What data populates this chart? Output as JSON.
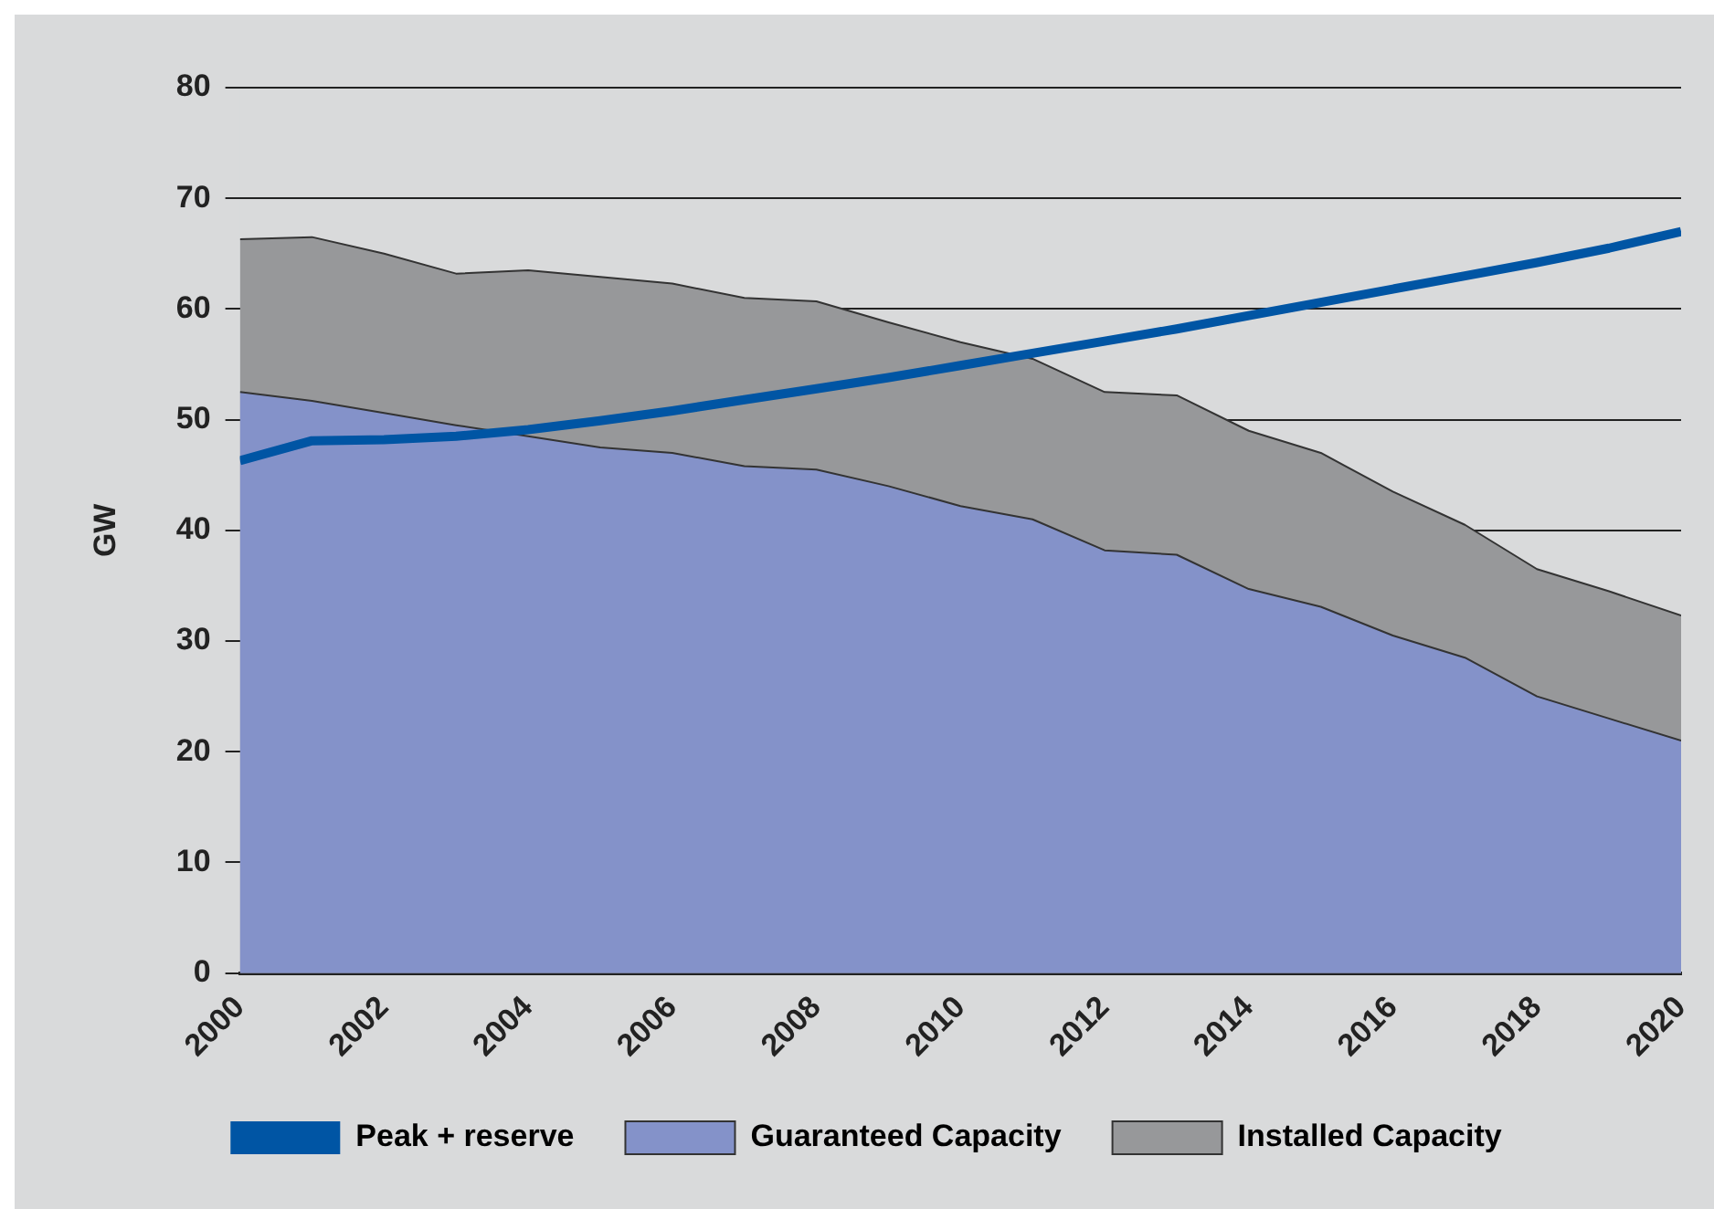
{
  "chart_data": {
    "type": "area",
    "ylabel": "GW",
    "x": [
      2000,
      2001,
      2002,
      2003,
      2004,
      2005,
      2006,
      2007,
      2008,
      2009,
      2010,
      2011,
      2012,
      2013,
      2014,
      2015,
      2016,
      2017,
      2018,
      2019,
      2020
    ],
    "xlim": [
      2000,
      2020
    ],
    "xticks": [
      2000,
      2002,
      2004,
      2006,
      2008,
      2010,
      2012,
      2014,
      2016,
      2018,
      2020
    ],
    "ylim": [
      0,
      80
    ],
    "yticks": [
      0,
      10,
      20,
      30,
      40,
      50,
      60,
      70,
      80
    ],
    "grid": "y",
    "legend": "bottom",
    "marker": "none",
    "series": [
      {
        "name": "Installed Capacity",
        "color": "#97989a",
        "values": [
          66.3,
          66.5,
          65,
          63.2,
          63.5,
          62.9,
          62.3,
          61,
          60.7,
          58.8,
          57,
          55.5,
          52.5,
          52.2,
          49,
          47,
          43.5,
          40.5,
          36.5,
          34.5,
          32.3
        ]
      },
      {
        "name": "Guaranteed Capacity",
        "color": "#8492c9",
        "values": [
          52.5,
          51.7,
          50.6,
          49.5,
          48.5,
          47.5,
          47,
          45.8,
          45.5,
          44,
          42.2,
          41,
          38.2,
          37.8,
          34.7,
          33.1,
          30.5,
          28.5,
          25,
          23,
          21
        ]
      },
      {
        "name": "Peak + reserve",
        "type": "line",
        "color": "#0055a4",
        "values": [
          46.3,
          48.1,
          48.2,
          48.5,
          49.1,
          49.9,
          50.8,
          51.8,
          52.8,
          53.8,
          54.9,
          56,
          57.1,
          58.2,
          59.4,
          60.6,
          61.8,
          63,
          64.2,
          65.5,
          67
        ]
      }
    ]
  }
}
